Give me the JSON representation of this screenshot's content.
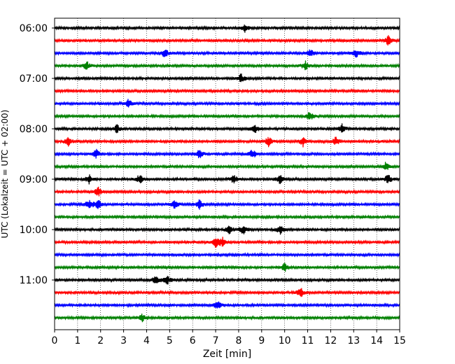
{
  "chart_data": {
    "type": "line",
    "subtype": "helicorder",
    "title": "",
    "xlabel": "Zeit  [min]",
    "ylabel": "UTC (Lokalzeit = UTC + 02:00)",
    "xlim": [
      0,
      15
    ],
    "x_ticks": [
      "0",
      "1",
      "2",
      "3",
      "4",
      "5",
      "6",
      "7",
      "8",
      "9",
      "10",
      "11",
      "12",
      "13",
      "14",
      "15"
    ],
    "y_tick_labels": [
      "06:00",
      "07:00",
      "08:00",
      "09:00",
      "10:00",
      "11:00"
    ],
    "grid": "vertical dotted lines at each minute",
    "row_minutes": 15,
    "row_count": 24,
    "row_colors": [
      "#000000",
      "#ff0000",
      "#0000ff",
      "#008000"
    ],
    "rows": [
      {
        "start": "06:00",
        "color": "#000000",
        "events_min": [
          8.3
        ]
      },
      {
        "start": "06:15",
        "color": "#ff0000",
        "events_min": [
          14.5
        ]
      },
      {
        "start": "06:30",
        "color": "#0000ff",
        "events_min": [
          4.8,
          11.1,
          13.1
        ]
      },
      {
        "start": "06:45",
        "color": "#008000",
        "events_min": [
          1.4,
          10.9
        ]
      },
      {
        "start": "07:00",
        "color": "#000000",
        "events_min": [
          8.1
        ]
      },
      {
        "start": "07:15",
        "color": "#ff0000",
        "events_min": []
      },
      {
        "start": "07:30",
        "color": "#0000ff",
        "events_min": [
          3.2
        ]
      },
      {
        "start": "07:45",
        "color": "#008000",
        "events_min": [
          11.1
        ]
      },
      {
        "start": "08:00",
        "color": "#000000",
        "events_min": [
          2.7,
          8.7,
          12.5
        ]
      },
      {
        "start": "08:15",
        "color": "#ff0000",
        "events_min": [
          0.6,
          9.3,
          10.8,
          12.2
        ]
      },
      {
        "start": "08:30",
        "color": "#0000ff",
        "events_min": [
          1.8,
          6.3,
          8.6
        ]
      },
      {
        "start": "08:45",
        "color": "#008000",
        "events_min": [
          14.4
        ]
      },
      {
        "start": "09:00",
        "color": "#000000",
        "events_min": [
          1.5,
          3.7,
          7.8,
          9.8,
          14.5
        ]
      },
      {
        "start": "09:15",
        "color": "#ff0000",
        "events_min": [
          1.9
        ]
      },
      {
        "start": "09:30",
        "color": "#0000ff",
        "events_min": [
          1.5,
          1.9,
          5.2,
          6.3
        ]
      },
      {
        "start": "09:45",
        "color": "#008000",
        "events_min": []
      },
      {
        "start": "10:00",
        "color": "#000000",
        "events_min": [
          7.6,
          8.2,
          9.8
        ]
      },
      {
        "start": "10:15",
        "color": "#ff0000",
        "events_min": [
          7.0,
          7.3
        ]
      },
      {
        "start": "10:30",
        "color": "#0000ff",
        "events_min": []
      },
      {
        "start": "10:45",
        "color": "#008000",
        "events_min": [
          10.0
        ]
      },
      {
        "start": "11:00",
        "color": "#000000",
        "events_min": [
          4.4,
          4.9
        ]
      },
      {
        "start": "11:15",
        "color": "#ff0000",
        "events_min": [
          10.7
        ]
      },
      {
        "start": "11:30",
        "color": "#0000ff",
        "events_min": [
          7.1
        ]
      },
      {
        "start": "11:45",
        "color": "#008000",
        "events_min": [
          3.8
        ]
      }
    ]
  }
}
